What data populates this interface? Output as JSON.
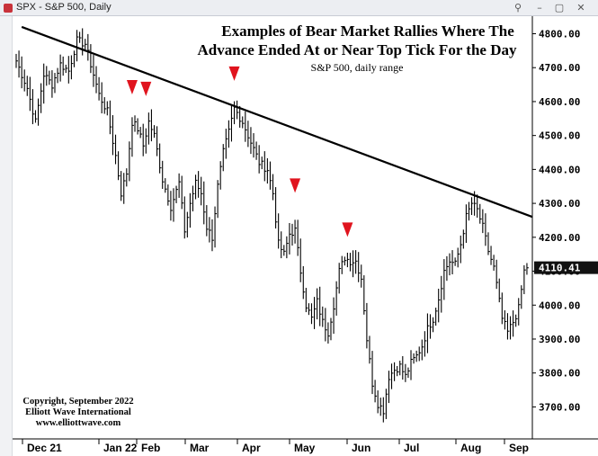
{
  "window": {
    "title": "SPX - S&P 500, Daily",
    "buttons": [
      "link",
      "minimize",
      "maximize",
      "close"
    ]
  },
  "chart_data": {
    "type": "ohlc",
    "title_line1": "Examples of Bear Market Rallies Where The",
    "title_line2": "Advance Ended At or Near Top Tick For the Day",
    "subtitle": "S&P 500, daily range",
    "copyright": [
      "Copyright, September 2022",
      "Elliott Wave International",
      "www.elliottwave.com"
    ],
    "y_ticks": [
      "4800.00",
      "4700.00",
      "4600.00",
      "4500.00",
      "4400.00",
      "4300.00",
      "4200.00",
      "4100.00",
      "4000.00",
      "3900.00",
      "3800.00",
      "3700.00"
    ],
    "x_ticks": [
      "Dec 21",
      "Jan 22",
      "Feb",
      "Mar",
      "Apr",
      "May",
      "Jun",
      "Jul",
      "Aug",
      "Sep"
    ],
    "ylim": [
      3620,
      4840
    ],
    "last_price_label": "4110.41",
    "last_price": 4110.41,
    "trendline": {
      "start": [
        2,
        4820
      ],
      "end": [
        187,
        4260
      ]
    },
    "markers": [
      {
        "bar": 42,
        "price": 4600
      },
      {
        "bar": 47,
        "price": 4595
      },
      {
        "bar": 79,
        "price": 4640
      },
      {
        "bar": 101,
        "price": 4310
      },
      {
        "bar": 120,
        "price": 4180
      }
    ],
    "anchors": [
      [
        0,
        4720
      ],
      [
        4,
        4640
      ],
      [
        7,
        4540
      ],
      [
        10,
        4680
      ],
      [
        13,
        4650
      ],
      [
        16,
        4710
      ],
      [
        19,
        4690
      ],
      [
        22,
        4780
      ],
      [
        25,
        4770
      ],
      [
        27,
        4710
      ],
      [
        30,
        4620
      ],
      [
        33,
        4570
      ],
      [
        36,
        4440
      ],
      [
        38,
        4330
      ],
      [
        40,
        4390
      ],
      [
        42,
        4540
      ],
      [
        44,
        4520
      ],
      [
        46,
        4470
      ],
      [
        48,
        4540
      ],
      [
        50,
        4500
      ],
      [
        53,
        4370
      ],
      [
        56,
        4290
      ],
      [
        59,
        4360
      ],
      [
        61,
        4220
      ],
      [
        63,
        4300
      ],
      [
        65,
        4360
      ],
      [
        67,
        4330
      ],
      [
        69,
        4230
      ],
      [
        71,
        4200
      ],
      [
        73,
        4350
      ],
      [
        75,
        4450
      ],
      [
        77,
        4510
      ],
      [
        79,
        4580
      ],
      [
        82,
        4540
      ],
      [
        85,
        4480
      ],
      [
        88,
        4420
      ],
      [
        91,
        4400
      ],
      [
        93,
        4330
      ],
      [
        95,
        4180
      ],
      [
        97,
        4150
      ],
      [
        99,
        4210
      ],
      [
        101,
        4220
      ],
      [
        103,
        4100
      ],
      [
        105,
        4000
      ],
      [
        107,
        3960
      ],
      [
        109,
        4010
      ],
      [
        111,
        3950
      ],
      [
        113,
        3920
      ],
      [
        115,
        4000
      ],
      [
        117,
        4100
      ],
      [
        119,
        4140
      ],
      [
        121,
        4130
      ],
      [
        123,
        4130
      ],
      [
        125,
        4080
      ],
      [
        127,
        3900
      ],
      [
        129,
        3770
      ],
      [
        131,
        3710
      ],
      [
        133,
        3690
      ],
      [
        135,
        3790
      ],
      [
        137,
        3810
      ],
      [
        139,
        3820
      ],
      [
        141,
        3790
      ],
      [
        143,
        3830
      ],
      [
        145,
        3850
      ],
      [
        147,
        3880
      ],
      [
        149,
        3930
      ],
      [
        151,
        3960
      ],
      [
        153,
        4020
      ],
      [
        155,
        4100
      ],
      [
        157,
        4130
      ],
      [
        159,
        4120
      ],
      [
        161,
        4180
      ],
      [
        163,
        4260
      ],
      [
        165,
        4300
      ],
      [
        167,
        4280
      ],
      [
        169,
        4230
      ],
      [
        171,
        4160
      ],
      [
        173,
        4110
      ],
      [
        174,
        4060
      ],
      [
        176,
        3960
      ],
      [
        178,
        3920
      ],
      [
        180,
        3950
      ],
      [
        182,
        3990
      ],
      [
        184,
        4100
      ],
      [
        185,
        4110
      ]
    ]
  }
}
